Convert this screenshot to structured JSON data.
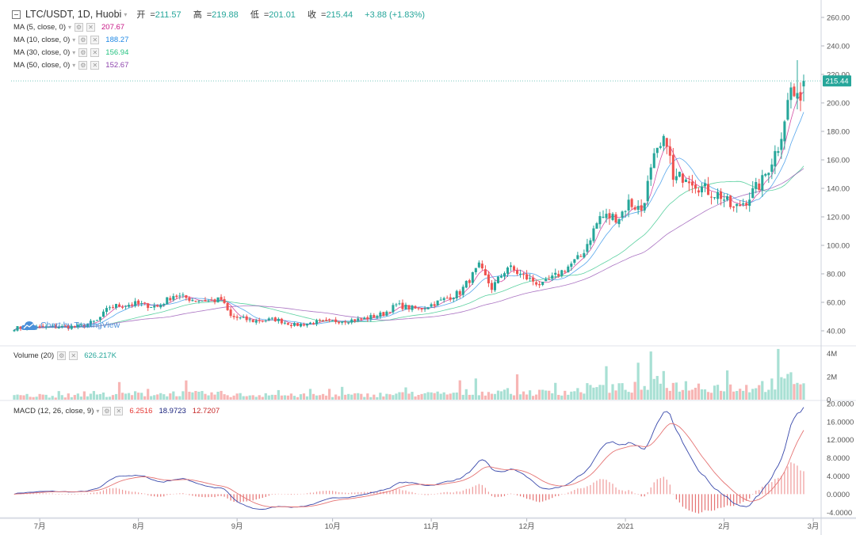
{
  "header": {
    "symbol": "LTC/USDT, 1D, Huobi",
    "open_label": "开",
    "open": "211.57",
    "high_label": "高",
    "high": "219.88",
    "low_label": "低",
    "low": "201.01",
    "close_label": "收",
    "close": "215.44",
    "change": "+3.88 (+1.83%)"
  },
  "ma_legend": [
    {
      "label": "MA (5, close, 0)",
      "value": "207.67",
      "color": "#c71585"
    },
    {
      "label": "MA (10, close, 0)",
      "value": "188.27",
      "color": "#1e88e5"
    },
    {
      "label": "MA (30, close, 0)",
      "value": "156.94",
      "color": "#26c281"
    },
    {
      "label": "MA (50, close, 0)",
      "value": "152.67",
      "color": "#8e44ad"
    }
  ],
  "volume_legend": {
    "label": "Volume (20)",
    "value": "626.217K",
    "color": "#26a69a"
  },
  "macd_legend": {
    "label": "MACD (12, 26, close, 9)",
    "v1": "6.2516",
    "v2": "18.9723",
    "v3": "12.7207",
    "c1": "#e53935",
    "c2": "#1a237e",
    "c3": "#c62828"
  },
  "watermark": "Chart by TradingView",
  "price_tag": "215.44",
  "colors": {
    "up": "#26a69a",
    "down": "#ef5350",
    "up_vol": "#a8e0d4",
    "down_vol": "#f7b6b5"
  },
  "chart_data": {
    "type": "candlestick",
    "x_ticks": [
      "7月",
      "8月",
      "9月",
      "10月",
      "11月",
      "12月",
      "2021",
      "2月",
      "3月"
    ],
    "price_axis": {
      "ticks": [
        "40.00",
        "60.00",
        "80.00",
        "100.00",
        "120.00",
        "140.00",
        "160.00",
        "180.00",
        "200.00",
        "220.00",
        "240.00",
        "260.00"
      ],
      "range": [
        30,
        270
      ]
    },
    "volume_axis": {
      "ticks": [
        "0",
        "2M",
        "4M"
      ],
      "range": [
        0,
        4.6
      ]
    },
    "macd_axis": {
      "ticks": [
        "-4.0000",
        "0.0000",
        "4.0000",
        "8.0000",
        "12.0000",
        "16.0000",
        "20.0000"
      ],
      "range": [
        -5,
        20.5
      ]
    },
    "anchors": [
      [
        0,
        42
      ],
      [
        20,
        43
      ],
      [
        26,
        47
      ],
      [
        30,
        57
      ],
      [
        38,
        59
      ],
      [
        45,
        57
      ],
      [
        50,
        65
      ],
      [
        56,
        62
      ],
      [
        62,
        61
      ],
      [
        65,
        62
      ],
      [
        68,
        50
      ],
      [
        75,
        47
      ],
      [
        82,
        48
      ],
      [
        88,
        44
      ],
      [
        95,
        46
      ],
      [
        102,
        47
      ],
      [
        109,
        48
      ],
      [
        116,
        52
      ],
      [
        120,
        58
      ],
      [
        127,
        55
      ],
      [
        134,
        61
      ],
      [
        140,
        67
      ],
      [
        146,
        85
      ],
      [
        150,
        70
      ],
      [
        155,
        85
      ],
      [
        160,
        78
      ],
      [
        166,
        72
      ],
      [
        171,
        80
      ],
      [
        178,
        92
      ],
      [
        184,
        120
      ],
      [
        190,
        120
      ],
      [
        193,
        130
      ],
      [
        197,
        125
      ],
      [
        201,
        160
      ],
      [
        205,
        175
      ],
      [
        207,
        145
      ],
      [
        211,
        150
      ],
      [
        216,
        140
      ],
      [
        222,
        135
      ],
      [
        226,
        125
      ],
      [
        230,
        132
      ],
      [
        235,
        145
      ],
      [
        240,
        170
      ],
      [
        244,
        210
      ],
      [
        246,
        200
      ],
      [
        248,
        215.44
      ]
    ],
    "last_close": 215.44
  }
}
